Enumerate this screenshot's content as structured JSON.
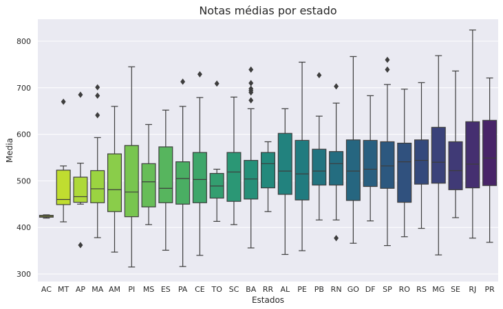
{
  "chart_data": {
    "type": "box",
    "title": "Notas médias por estado",
    "xlabel": "Estados",
    "ylabel": "Media",
    "ylim": [
      290,
      845
    ],
    "yticks": [
      300,
      400,
      500,
      600,
      700,
      800
    ],
    "grid": true,
    "background": "#eaeaf2",
    "series": [
      {
        "category": "AC",
        "q1": 422,
        "median": 424,
        "q3": 426,
        "whisker_low": 420,
        "whisker_high": 427,
        "outliers": [],
        "color": "#c7e020"
      },
      {
        "category": "MT",
        "q1": 449,
        "median": 460,
        "q3": 523,
        "whisker_low": 412,
        "whisker_high": 532,
        "outliers": [
          670
        ],
        "color": "#c0dd30"
      },
      {
        "category": "AP",
        "q1": 454,
        "median": 466,
        "q3": 508,
        "whisker_low": 450,
        "whisker_high": 538,
        "outliers": [
          685,
          362
        ],
        "color": "#aed93a"
      },
      {
        "category": "MA",
        "q1": 453,
        "median": 483,
        "q3": 522,
        "whisker_low": 378,
        "whisker_high": 593,
        "outliers": [
          701,
          683,
          641
        ],
        "color": "#9bd441"
      },
      {
        "category": "AM",
        "q1": 434,
        "median": 481,
        "q3": 558,
        "whisker_low": 347,
        "whisker_high": 660,
        "outliers": [],
        "color": "#8acd4a"
      },
      {
        "category": "PI",
        "q1": 423,
        "median": 476,
        "q3": 576,
        "whisker_low": 315,
        "whisker_high": 745,
        "outliers": [],
        "color": "#78c550"
      },
      {
        "category": "MS",
        "q1": 444,
        "median": 498,
        "q3": 537,
        "whisker_low": 406,
        "whisker_high": 621,
        "outliers": [],
        "color": "#67bd58"
      },
      {
        "category": "ES",
        "q1": 453,
        "median": 484,
        "q3": 573,
        "whisker_low": 351,
        "whisker_high": 652,
        "outliers": [],
        "color": "#57b55e"
      },
      {
        "category": "PA",
        "q1": 450,
        "median": 505,
        "q3": 541,
        "whisker_low": 316,
        "whisker_high": 660,
        "outliers": [
          713
        ],
        "color": "#4aae63"
      },
      {
        "category": "CE",
        "q1": 453,
        "median": 503,
        "q3": 561,
        "whisker_low": 340,
        "whisker_high": 679,
        "outliers": [
          729
        ],
        "color": "#3ea66a"
      },
      {
        "category": "TO",
        "q1": 463,
        "median": 489,
        "q3": 516,
        "whisker_low": 413,
        "whisker_high": 525,
        "outliers": [
          709
        ],
        "color": "#339e70"
      },
      {
        "category": "SC",
        "q1": 456,
        "median": 519,
        "q3": 561,
        "whisker_low": 406,
        "whisker_high": 680,
        "outliers": [],
        "color": "#2b9775"
      },
      {
        "category": "BA",
        "q1": 461,
        "median": 504,
        "q3": 544,
        "whisker_low": 356,
        "whisker_high": 655,
        "outliers": [
          739,
          710,
          698,
          694,
          690,
          673
        ],
        "color": "#269079"
      },
      {
        "category": "RR",
        "q1": 485,
        "median": 537,
        "q3": 561,
        "whisker_low": 434,
        "whisker_high": 584,
        "outliers": [],
        "color": "#23897c"
      },
      {
        "category": "AL",
        "q1": 471,
        "median": 521,
        "q3": 602,
        "whisker_low": 342,
        "whisker_high": 655,
        "outliers": [],
        "color": "#22827e"
      },
      {
        "category": "PE",
        "q1": 459,
        "median": 515,
        "q3": 587,
        "whisker_low": 350,
        "whisker_high": 755,
        "outliers": [],
        "color": "#217b7f"
      },
      {
        "category": "PB",
        "q1": 491,
        "median": 521,
        "q3": 568,
        "whisker_low": 416,
        "whisker_high": 639,
        "outliers": [
          727
        ],
        "color": "#227480"
      },
      {
        "category": "RN",
        "q1": 491,
        "median": 537,
        "q3": 563,
        "whisker_low": 416,
        "whisker_high": 667,
        "outliers": [
          703,
          377
        ],
        "color": "#246d80"
      },
      {
        "category": "GO",
        "q1": 458,
        "median": 521,
        "q3": 588,
        "whisker_low": 366,
        "whisker_high": 767,
        "outliers": [],
        "color": "#266680"
      },
      {
        "category": "DF",
        "q1": 488,
        "median": 525,
        "q3": 587,
        "whisker_low": 414,
        "whisker_high": 683,
        "outliers": [],
        "color": "#295f80"
      },
      {
        "category": "SP",
        "q1": 484,
        "median": 532,
        "q3": 584,
        "whisker_low": 361,
        "whisker_high": 707,
        "outliers": [
          760,
          739
        ],
        "color": "#2c587f"
      },
      {
        "category": "RO",
        "q1": 454,
        "median": 541,
        "q3": 581,
        "whisker_low": 380,
        "whisker_high": 697,
        "outliers": [],
        "color": "#30517e"
      },
      {
        "category": "RS",
        "q1": 493,
        "median": 544,
        "q3": 588,
        "whisker_low": 398,
        "whisker_high": 711,
        "outliers": [],
        "color": "#34497c"
      },
      {
        "category": "MG",
        "q1": 495,
        "median": 540,
        "q3": 615,
        "whisker_low": 341,
        "whisker_high": 769,
        "outliers": [],
        "color": "#3a427a"
      },
      {
        "category": "SE",
        "q1": 481,
        "median": 522,
        "q3": 584,
        "whisker_low": 421,
        "whisker_high": 736,
        "outliers": [],
        "color": "#403a76"
      },
      {
        "category": "RJ",
        "q1": 485,
        "median": 536,
        "q3": 627,
        "whisker_low": 377,
        "whisker_high": 824,
        "outliers": [],
        "color": "#452f70"
      },
      {
        "category": "PR",
        "q1": 490,
        "median": 549,
        "q3": 630,
        "whisker_low": 368,
        "whisker_high": 721,
        "outliers": [],
        "color": "#482468"
      }
    ]
  }
}
